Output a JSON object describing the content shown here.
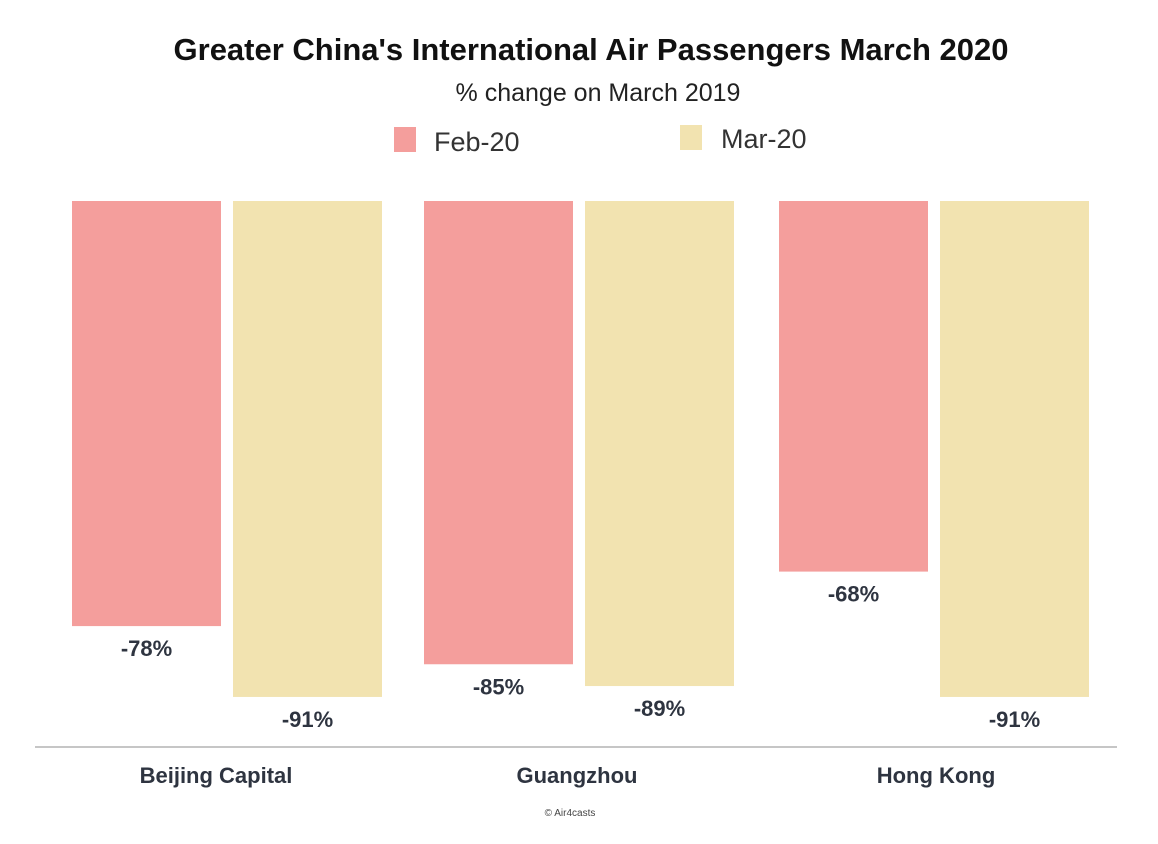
{
  "chart_data": {
    "type": "bar",
    "title": "Greater China's International Air Passengers March 2020",
    "subtitle": "% change on March 2019",
    "categories": [
      "Beijing Capital",
      "Guangzhou",
      "Hong Kong"
    ],
    "series": [
      {
        "name": "Feb-20",
        "color": "#f49e9c",
        "values": [
          -78,
          -85,
          -68
        ],
        "labels": [
          "-78%",
          "-85%",
          "-68%"
        ]
      },
      {
        "name": "Mar-20",
        "color": "#f2e3b0",
        "values": [
          -91,
          -89,
          -91
        ],
        "labels": [
          "-91%",
          "-89%",
          "-91%"
        ]
      }
    ],
    "ylim": [
      -100,
      0
    ],
    "grid": false,
    "legend_position": "top-center",
    "axis_color": "#b3b3b3",
    "credit": "© Air4casts"
  }
}
